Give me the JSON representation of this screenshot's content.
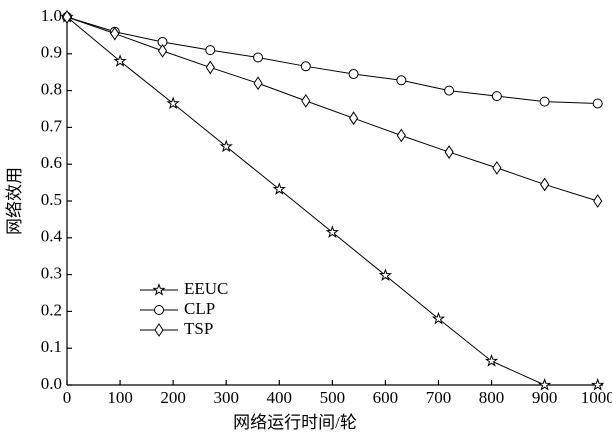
{
  "chart_data": {
    "type": "line",
    "xlabel": "网络运行时间/轮",
    "ylabel": "网络效用",
    "xlim": [
      0,
      1010
    ],
    "ylim": [
      0,
      1
    ],
    "xticks": [
      0,
      100,
      200,
      300,
      400,
      500,
      600,
      700,
      800,
      900,
      1000
    ],
    "yticks": [
      {
        "value": 0,
        "label": "0.0"
      },
      0.1,
      0.2,
      0.3,
      0.4,
      0.5,
      0.6,
      0.7,
      0.8,
      0.9,
      {
        "value": 1,
        "label": "1.0"
      }
    ],
    "legend": "lower left",
    "series": [
      {
        "name": "EEUC",
        "color": "#000000",
        "marker": "star",
        "x": [
          0,
          100,
          200,
          300,
          400,
          500,
          600,
          700,
          800,
          900,
          1000
        ],
        "values": [
          1.0,
          0.88,
          0.765,
          0.648,
          0.532,
          0.415,
          0.298,
          0.18,
          0.065,
          0,
          0
        ]
      },
      {
        "name": "CLP",
        "color": "#000000",
        "marker": "circle",
        "x": [
          0,
          90,
          180,
          270,
          360,
          450,
          540,
          630,
          720,
          810,
          900,
          1000
        ],
        "values": [
          1.0,
          0.96,
          0.932,
          0.91,
          0.89,
          0.866,
          0.845,
          0.828,
          0.8,
          0.785,
          0.77,
          0.765
        ]
      },
      {
        "name": "TSP",
        "color": "#000000",
        "marker": "diamond",
        "x": [
          0,
          90,
          180,
          270,
          360,
          450,
          540,
          630,
          720,
          810,
          900,
          1000
        ],
        "values": [
          1.0,
          0.955,
          0.908,
          0.863,
          0.82,
          0.772,
          0.725,
          0.678,
          0.633,
          0.59,
          0.545,
          0.5
        ]
      }
    ]
  }
}
